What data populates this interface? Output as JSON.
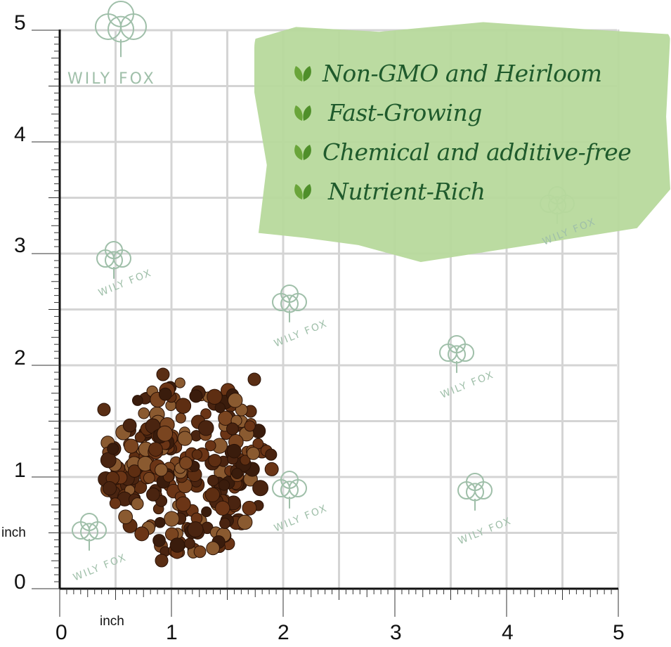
{
  "features": [
    {
      "icon": "leaf-check-icon",
      "text": "Non-GMO and Heirloom"
    },
    {
      "icon": "leaf-check-icon",
      "text": "Fast-Growing"
    },
    {
      "icon": "leaf-check-icon",
      "text": "Chemical and additive-free"
    },
    {
      "icon": "leaf-check-icon",
      "text": "Nutrient-Rich"
    }
  ],
  "ruler": {
    "unit_label": "inch",
    "y_ticks": [
      "0",
      "1",
      "2",
      "3",
      "4",
      "5"
    ],
    "x_ticks": [
      "0",
      "1",
      "2",
      "3",
      "4",
      "5"
    ]
  },
  "watermark": "WILY FOX",
  "colors": {
    "brush": "#b7d99c",
    "text": "#1f5a2c",
    "grid": "#d4d4d4",
    "seed": "#5a2e14"
  }
}
